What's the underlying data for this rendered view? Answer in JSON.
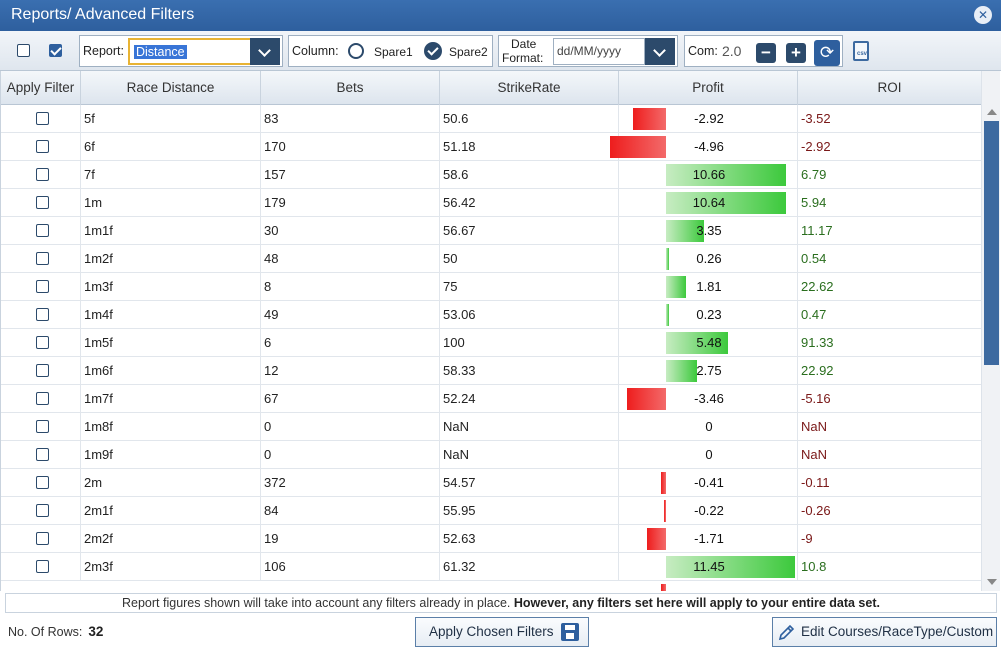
{
  "window": {
    "title": "Reports/ Advanced Filters"
  },
  "toolbar": {
    "report_label": "Report:",
    "report_value": "Distance",
    "column_label": "Column:",
    "spare1_label": "Spare1",
    "spare2_label": "Spare2",
    "date_format_label_line1": "Date",
    "date_format_label_line2": "Format:",
    "date_format_placeholder": "dd/MM/yyyy",
    "com_label": "Com:",
    "com_value": "2.0"
  },
  "table": {
    "headers": [
      "Apply Filter",
      "Race Distance",
      "Bets",
      "StrikeRate",
      "Profit",
      "ROI"
    ],
    "rows": [
      {
        "distance": "5f",
        "bets": "83",
        "strike": "50.6",
        "profit": -2.92,
        "profit_text": "-2.92",
        "roi": "-3.52"
      },
      {
        "distance": "6f",
        "bets": "170",
        "strike": "51.18",
        "profit": -4.96,
        "profit_text": "-4.96",
        "roi": "-2.92"
      },
      {
        "distance": "7f",
        "bets": "157",
        "strike": "58.6",
        "profit": 10.66,
        "profit_text": "10.66",
        "roi": "6.79"
      },
      {
        "distance": "1m",
        "bets": "179",
        "strike": "56.42",
        "profit": 10.64,
        "profit_text": "10.64",
        "roi": "5.94"
      },
      {
        "distance": "1m1f",
        "bets": "30",
        "strike": "56.67",
        "profit": 3.35,
        "profit_text": "3.35",
        "roi": "11.17"
      },
      {
        "distance": "1m2f",
        "bets": "48",
        "strike": "50",
        "profit": 0.26,
        "profit_text": "0.26",
        "roi": "0.54"
      },
      {
        "distance": "1m3f",
        "bets": "8",
        "strike": "75",
        "profit": 1.81,
        "profit_text": "1.81",
        "roi": "22.62"
      },
      {
        "distance": "1m4f",
        "bets": "49",
        "strike": "53.06",
        "profit": 0.23,
        "profit_text": "0.23",
        "roi": "0.47"
      },
      {
        "distance": "1m5f",
        "bets": "6",
        "strike": "100",
        "profit": 5.48,
        "profit_text": "5.48",
        "roi": "91.33"
      },
      {
        "distance": "1m6f",
        "bets": "12",
        "strike": "58.33",
        "profit": 2.75,
        "profit_text": "2.75",
        "roi": "22.92"
      },
      {
        "distance": "1m7f",
        "bets": "67",
        "strike": "52.24",
        "profit": -3.46,
        "profit_text": "-3.46",
        "roi": "-5.16"
      },
      {
        "distance": "1m8f",
        "bets": "0",
        "strike": "NaN",
        "profit": 0,
        "profit_text": "0",
        "roi": "NaN"
      },
      {
        "distance": "1m9f",
        "bets": "0",
        "strike": "NaN",
        "profit": 0,
        "profit_text": "0",
        "roi": "NaN"
      },
      {
        "distance": "2m",
        "bets": "372",
        "strike": "54.57",
        "profit": -0.41,
        "profit_text": "-0.41",
        "roi": "-0.11"
      },
      {
        "distance": "2m1f",
        "bets": "84",
        "strike": "55.95",
        "profit": -0.22,
        "profit_text": "-0.22",
        "roi": "-0.26"
      },
      {
        "distance": "2m2f",
        "bets": "19",
        "strike": "52.63",
        "profit": -1.71,
        "profit_text": "-1.71",
        "roi": "-9"
      },
      {
        "distance": "2m3f",
        "bets": "106",
        "strike": "61.32",
        "profit": 11.45,
        "profit_text": "11.45",
        "roi": "10.8"
      }
    ]
  },
  "notice": {
    "text_plain": "Report figures shown will take into account any filters already in place. ",
    "text_bold": "However, any filters set here will apply to your entire data set."
  },
  "footer": {
    "rows_label": "No. Of Rows:",
    "rows_count": "32",
    "apply_button": "Apply Chosen Filters",
    "edit_button": "Edit Courses/RaceType/Custom"
  },
  "colors": {
    "accent": "#2e5f9e",
    "dark": "#2c4a6b",
    "neg_bar": "#ee1d1d",
    "pos_bar": "#3cc93c"
  },
  "icons": [
    "close-icon",
    "chevron-down-icon",
    "minus-icon",
    "plus-icon",
    "refresh-icon",
    "export-csv-icon",
    "save-icon",
    "pencil-icon"
  ]
}
